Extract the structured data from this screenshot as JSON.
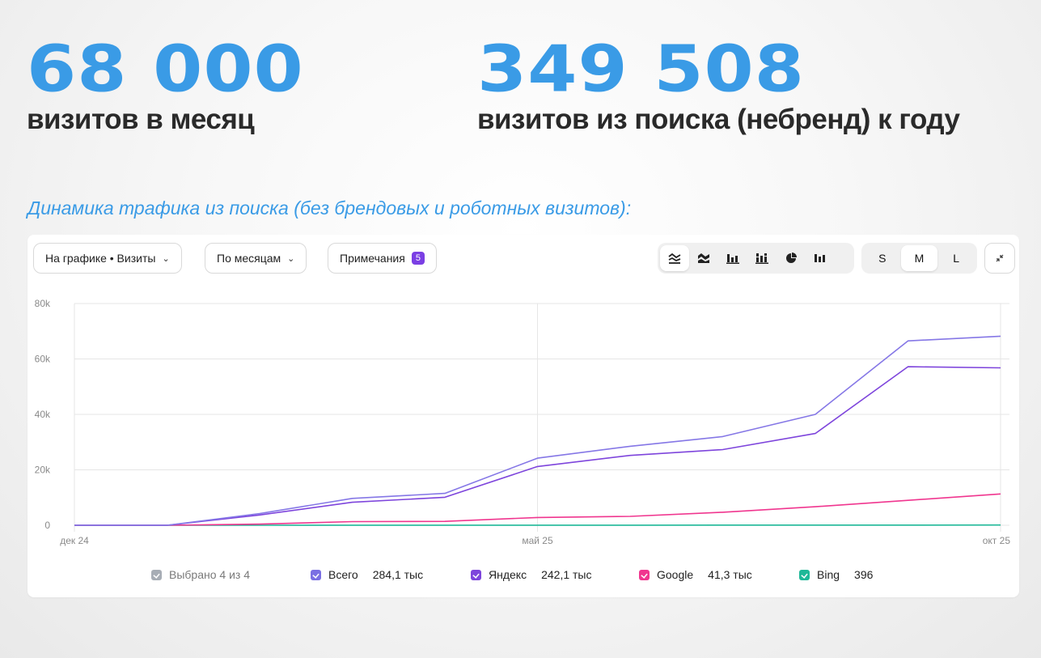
{
  "stats": [
    {
      "value": "68 000",
      "caption": "визитов в месяц"
    },
    {
      "value": "349 508",
      "caption": "визитов из поиска (небренд) к году"
    }
  ],
  "subtitle": "Динамика трафика из поиска (без брендовых и роботных визитов):",
  "toolbar": {
    "metric_dropdown": "На графике • Визиты",
    "period_dropdown": "По месяцам",
    "notes_label": "Примечания",
    "notes_count": "5",
    "chart_types": [
      "line-chart-icon",
      "area-chart-icon",
      "bar-chart-icon",
      "stacked-bar-icon",
      "pie-chart-icon",
      "column-chart-icon"
    ],
    "active_chart_type": "line-chart-icon",
    "sizes": [
      "S",
      "M",
      "L"
    ],
    "active_size": "M",
    "collapse_icon": "collapse-icon"
  },
  "chart_data": {
    "type": "line",
    "x_ticks": [
      "дек 24",
      "май 25",
      "окт 25"
    ],
    "x": [
      "2024-12",
      "2025-01",
      "2025-02",
      "2025-03",
      "2025-04",
      "2025-05",
      "2025-06",
      "2025-07",
      "2025-08",
      "2025-09",
      "2025-10"
    ],
    "y_ticks": [
      "0",
      "20k",
      "40k",
      "60k",
      "80k"
    ],
    "ylim": [
      0,
      80000
    ],
    "grid": true,
    "series": [
      {
        "name": "Всего",
        "color": "#8577e6",
        "values": [
          0,
          0,
          4200,
          9700,
          11500,
          24200,
          28500,
          32000,
          40000,
          66500,
          68200
        ]
      },
      {
        "name": "Яндекс",
        "color": "#7e45dc",
        "values": [
          0,
          0,
          3700,
          8300,
          10100,
          21200,
          25200,
          27300,
          33100,
          57200,
          56800
        ]
      },
      {
        "name": "Google",
        "color": "#f0368f",
        "values": [
          0,
          0,
          400,
          1300,
          1400,
          2800,
          3200,
          4700,
          6700,
          9000,
          11300
        ]
      },
      {
        "name": "Bing",
        "color": "#1fb898",
        "values": [
          0,
          0,
          10,
          20,
          20,
          40,
          40,
          50,
          60,
          70,
          80
        ]
      }
    ],
    "legend_position": "bottom"
  },
  "legend": {
    "selected": "Выбрано 4 из 4",
    "selected_color": "#a7adb5",
    "items": [
      {
        "name": "Всего",
        "value": "284,1 тыс",
        "color": "#7a6fe3"
      },
      {
        "name": "Яндекс",
        "value": "242,1 тыс",
        "color": "#7e45dc"
      },
      {
        "name": "Google",
        "value": "41,3 тыс",
        "color": "#f0368f"
      },
      {
        "name": "Bing",
        "value": "396",
        "color": "#1fb898"
      }
    ]
  }
}
